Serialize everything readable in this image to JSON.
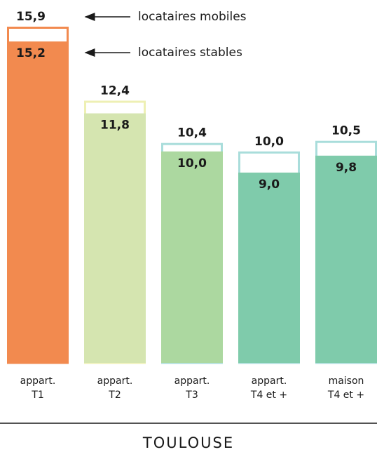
{
  "chart_data": {
    "type": "overlap-bar",
    "categories": [
      [
        "appart.",
        "T1"
      ],
      [
        "appart.",
        "T2"
      ],
      [
        "appart.",
        "T3"
      ],
      [
        "appart.",
        "T4 et +"
      ],
      [
        "maison",
        "T4 et +"
      ]
    ],
    "series": [
      {
        "name": "locataires mobiles",
        "colors": [
          "#f28a4f",
          "#eef0b4",
          "#a9dddb",
          "#a9dddb",
          "#a9dddb"
        ],
        "values": [
          15.9,
          12.4,
          10.4,
          10.0,
          10.5
        ],
        "value_labels": [
          "15,9",
          "12,4",
          "10,4",
          "10,0",
          "10,5"
        ]
      },
      {
        "name": "locataires stables",
        "colors": [
          "#f28a4f",
          "#d5e5b0",
          "#acd8a0",
          "#7fcbab",
          "#7fcbab"
        ],
        "values": [
          15.2,
          11.8,
          10.0,
          9.0,
          9.8
        ],
        "value_labels": [
          "15,2",
          "11,8",
          "10,0",
          "9,0",
          "9,8"
        ]
      }
    ],
    "ylim": [
      0,
      16
    ],
    "footer": "TOULOUSE"
  }
}
